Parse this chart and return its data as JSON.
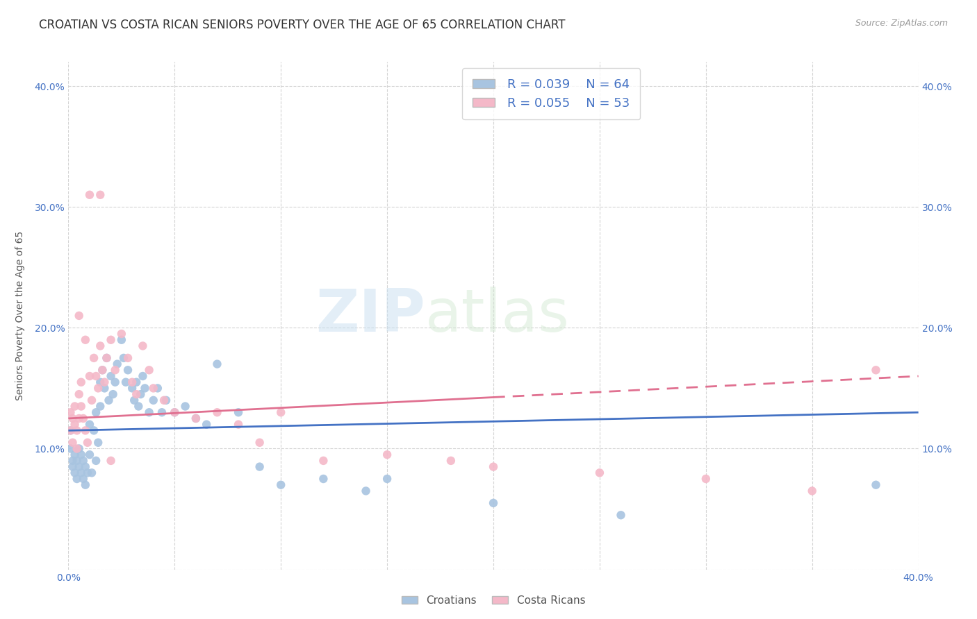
{
  "title": "CROATIAN VS COSTA RICAN SENIORS POVERTY OVER THE AGE OF 65 CORRELATION CHART",
  "source": "Source: ZipAtlas.com",
  "ylabel": "Seniors Poverty Over the Age of 65",
  "xlim": [
    0.0,
    0.4
  ],
  "ylim": [
    0.0,
    0.42
  ],
  "croatian_color": "#a8c4e0",
  "costa_rican_color": "#f4b8c8",
  "regression_blue": "#4472c4",
  "regression_pink": "#e07090",
  "legend_R_blue": "R = 0.039",
  "legend_N_blue": "N = 64",
  "legend_R_pink": "R = 0.055",
  "legend_N_pink": "N = 53",
  "croatians_x": [
    0.001,
    0.001,
    0.002,
    0.002,
    0.003,
    0.003,
    0.004,
    0.004,
    0.005,
    0.005,
    0.006,
    0.006,
    0.007,
    0.007,
    0.008,
    0.008,
    0.009,
    0.01,
    0.01,
    0.011,
    0.012,
    0.013,
    0.013,
    0.014,
    0.015,
    0.015,
    0.016,
    0.017,
    0.018,
    0.019,
    0.02,
    0.021,
    0.022,
    0.023,
    0.025,
    0.026,
    0.027,
    0.028,
    0.03,
    0.031,
    0.032,
    0.033,
    0.034,
    0.035,
    0.036,
    0.038,
    0.04,
    0.042,
    0.044,
    0.046,
    0.05,
    0.055,
    0.06,
    0.065,
    0.07,
    0.08,
    0.09,
    0.1,
    0.12,
    0.14,
    0.15,
    0.2,
    0.26,
    0.38
  ],
  "croatians_y": [
    0.115,
    0.1,
    0.09,
    0.085,
    0.095,
    0.08,
    0.09,
    0.075,
    0.1,
    0.085,
    0.095,
    0.08,
    0.09,
    0.075,
    0.085,
    0.07,
    0.08,
    0.12,
    0.095,
    0.08,
    0.115,
    0.09,
    0.13,
    0.105,
    0.155,
    0.135,
    0.165,
    0.15,
    0.175,
    0.14,
    0.16,
    0.145,
    0.155,
    0.17,
    0.19,
    0.175,
    0.155,
    0.165,
    0.15,
    0.14,
    0.155,
    0.135,
    0.145,
    0.16,
    0.15,
    0.13,
    0.14,
    0.15,
    0.13,
    0.14,
    0.13,
    0.135,
    0.125,
    0.12,
    0.17,
    0.13,
    0.085,
    0.07,
    0.075,
    0.065,
    0.075,
    0.055,
    0.045,
    0.07
  ],
  "costa_ricans_x": [
    0.001,
    0.001,
    0.002,
    0.002,
    0.003,
    0.003,
    0.004,
    0.004,
    0.005,
    0.005,
    0.006,
    0.006,
    0.007,
    0.008,
    0.009,
    0.01,
    0.011,
    0.012,
    0.013,
    0.014,
    0.015,
    0.016,
    0.017,
    0.018,
    0.02,
    0.022,
    0.025,
    0.028,
    0.03,
    0.032,
    0.035,
    0.038,
    0.04,
    0.045,
    0.05,
    0.06,
    0.07,
    0.08,
    0.09,
    0.1,
    0.12,
    0.15,
    0.18,
    0.2,
    0.25,
    0.3,
    0.35,
    0.38,
    0.005,
    0.008,
    0.01,
    0.015,
    0.02
  ],
  "costa_ricans_y": [
    0.13,
    0.115,
    0.125,
    0.105,
    0.135,
    0.12,
    0.115,
    0.1,
    0.145,
    0.125,
    0.155,
    0.135,
    0.125,
    0.115,
    0.105,
    0.16,
    0.14,
    0.175,
    0.16,
    0.15,
    0.185,
    0.165,
    0.155,
    0.175,
    0.19,
    0.165,
    0.195,
    0.175,
    0.155,
    0.145,
    0.185,
    0.165,
    0.15,
    0.14,
    0.13,
    0.125,
    0.13,
    0.12,
    0.105,
    0.13,
    0.09,
    0.095,
    0.09,
    0.085,
    0.08,
    0.075,
    0.065,
    0.165,
    0.21,
    0.19,
    0.31,
    0.31,
    0.09
  ],
  "watermark_zip": "ZIP",
  "watermark_atlas": "atlas",
  "background_color": "#ffffff",
  "grid_color": "#d0d0d0",
  "title_fontsize": 12,
  "axis_fontsize": 10,
  "tick_fontsize": 10,
  "tick_color": "#4472c4"
}
